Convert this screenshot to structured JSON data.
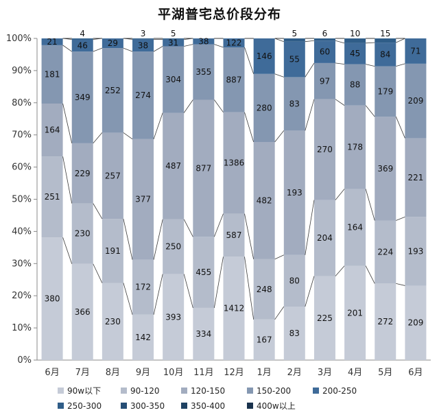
{
  "chart_data": {
    "type": "bar",
    "stacked": "percent",
    "title": "平湖普宅总价段分布",
    "categories": [
      "6月",
      "7月",
      "8月",
      "9月",
      "10月",
      "11月",
      "12月",
      "1月",
      "2月",
      "3月",
      "4月",
      "5月",
      "6月"
    ],
    "series": [
      {
        "name": "90w以下",
        "color": "#c5cbd7",
        "values": [
          380,
          366,
          230,
          142,
          393,
          334,
          1412,
          167,
          83,
          225,
          201,
          272,
          209
        ]
      },
      {
        "name": "90-120",
        "color": "#b4bccb",
        "values": [
          251,
          230,
          191,
          172,
          250,
          455,
          587,
          248,
          80,
          204,
          164,
          224,
          193
        ]
      },
      {
        "name": "120-150",
        "color": "#a2acbf",
        "values": [
          164,
          229,
          257,
          377,
          487,
          877,
          1386,
          482,
          193,
          270,
          178,
          369,
          221
        ]
      },
      {
        "name": "150-200",
        "color": "#8497b1",
        "values": [
          181,
          349,
          252,
          274,
          304,
          355,
          887,
          280,
          83,
          97,
          88,
          179,
          209
        ]
      },
      {
        "name": "200-250",
        "color": "#3f6b99",
        "values": [
          21,
          46,
          29,
          38,
          31,
          38,
          122,
          146,
          55,
          60,
          45,
          84,
          71
        ]
      },
      {
        "name": "250-300",
        "color": "#2f5d88",
        "values": [
          0,
          4,
          0,
          3,
          5,
          0,
          0,
          0,
          5,
          6,
          10,
          15,
          0
        ]
      },
      {
        "name": "300-350",
        "color": "#264e75",
        "values": [
          0,
          0,
          0,
          0,
          0,
          0,
          0,
          0,
          0,
          0,
          0,
          0,
          0
        ]
      },
      {
        "name": "350-400",
        "color": "#1f4263",
        "values": [
          0,
          0,
          0,
          0,
          0,
          0,
          0,
          0,
          0,
          0,
          0,
          0,
          0
        ]
      },
      {
        "name": "400w以上",
        "color": "#19324d",
        "values": [
          0,
          0,
          0,
          0,
          0,
          0,
          0,
          0,
          0,
          0,
          0,
          0,
          0
        ]
      }
    ],
    "y_ticks": [
      "0%",
      "10%",
      "20%",
      "30%",
      "40%",
      "50%",
      "60%",
      "70%",
      "80%",
      "90%",
      "100%"
    ],
    "ylim": [
      0,
      100
    ],
    "grid": false,
    "legend_position": "bottom",
    "series_lines": true
  }
}
